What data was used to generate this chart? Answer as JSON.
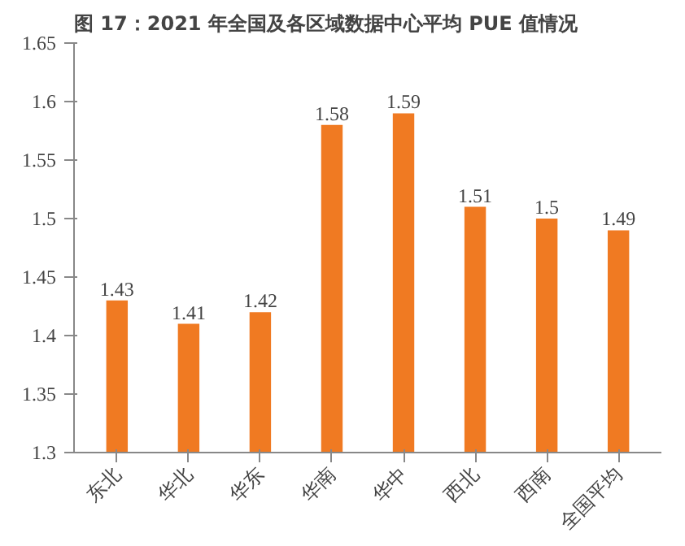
{
  "chart_data": {
    "type": "bar",
    "title": "图 17：2021 年全国及各区域数据中心平均 PUE 值情况",
    "categories": [
      "东北",
      "华北",
      "华东",
      "华南",
      "华中",
      "西北",
      "西南",
      "全国平均"
    ],
    "values": [
      1.43,
      1.41,
      1.42,
      1.58,
      1.59,
      1.51,
      1.5,
      1.49
    ],
    "color": "#f07a22",
    "ylim": [
      1.3,
      1.65
    ],
    "yticks": [
      1.3,
      1.35,
      1.4,
      1.45,
      1.5,
      1.55,
      1.6,
      1.65
    ],
    "data_labels": true,
    "grid": false
  }
}
